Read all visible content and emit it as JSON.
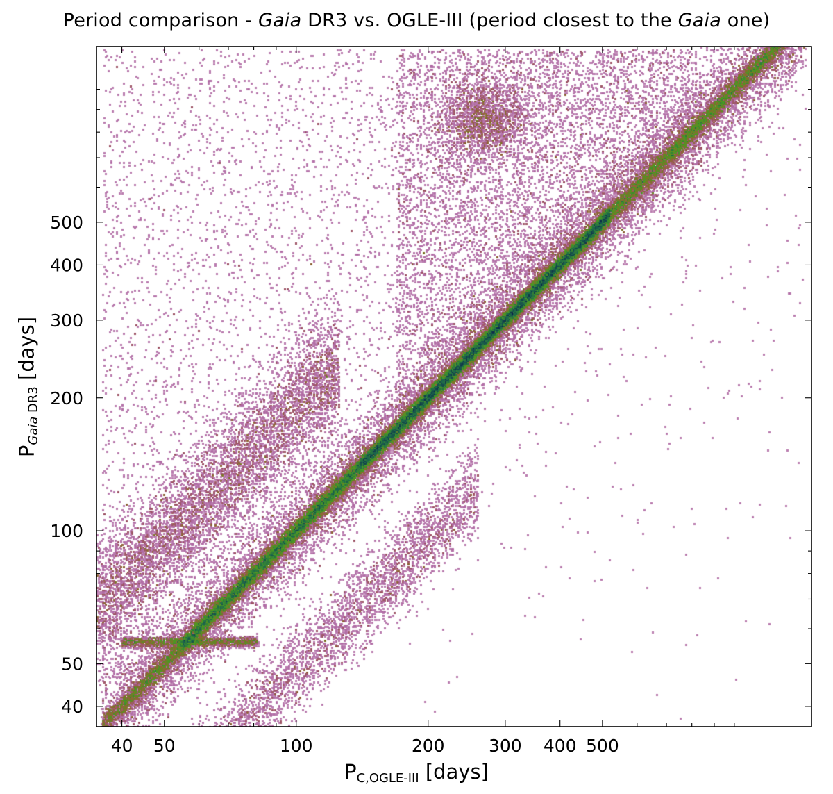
{
  "chart_data": {
    "type": "scatter",
    "title_parts": [
      "Period comparison - ",
      "Gaia",
      " DR3 vs. OGLE-III (period closest to the ",
      "Gaia",
      " one)"
    ],
    "xlabel_main": "P",
    "xlabel_sub": "C,OGLE-III",
    "xlabel_unit": "[days]",
    "ylabel_main": "P",
    "ylabel_sub_italic": "Gaia",
    "ylabel_sub": " DR3",
    "ylabel_unit": "[days]",
    "x_scale": "log",
    "y_scale": "log",
    "xlim": [
      35,
      1500
    ],
    "ylim": [
      36,
      1250
    ],
    "x_ticks": [
      40,
      50,
      100,
      200,
      300,
      400,
      500
    ],
    "y_ticks": [
      40,
      50,
      100,
      200,
      300,
      400,
      500
    ],
    "x_tick_labels": [
      "40",
      "50",
      "100",
      "200",
      "300",
      "400",
      "500"
    ],
    "y_tick_labels": [
      "40",
      "50",
      "100",
      "200",
      "300",
      "400",
      "500"
    ],
    "grid": false,
    "density_colormap": [
      "#a6cfe8",
      "#b98ac8",
      "#a84f86",
      "#8a6a2a",
      "#4a9a22",
      "#1e6a4a",
      "#0a1f4a"
    ],
    "features": [
      {
        "name": "1:1 relation",
        "x_range": [
          35,
          1450
        ],
        "relation": "P_Gaia = P_OGLE"
      },
      {
        "name": "horizontal artifact",
        "x_range": [
          40,
          80
        ],
        "y": 56
      },
      {
        "name": "upper diagonal band",
        "x_range": [
          35,
          120
        ],
        "relation": "P_Gaia = 2 x P_OGLE"
      },
      {
        "name": "lower diagonal band",
        "x_range": [
          55,
          250
        ],
        "relation": "P_Gaia = 0.5 x P_OGLE"
      },
      {
        "name": "upper-right cloud",
        "x_range": [
          180,
          800
        ],
        "y_range": [
          150,
          1200
        ]
      },
      {
        "name": "yearly alias cluster",
        "x_range": [
          220,
          320
        ],
        "y_range": [
          750,
          1000
        ]
      }
    ]
  }
}
